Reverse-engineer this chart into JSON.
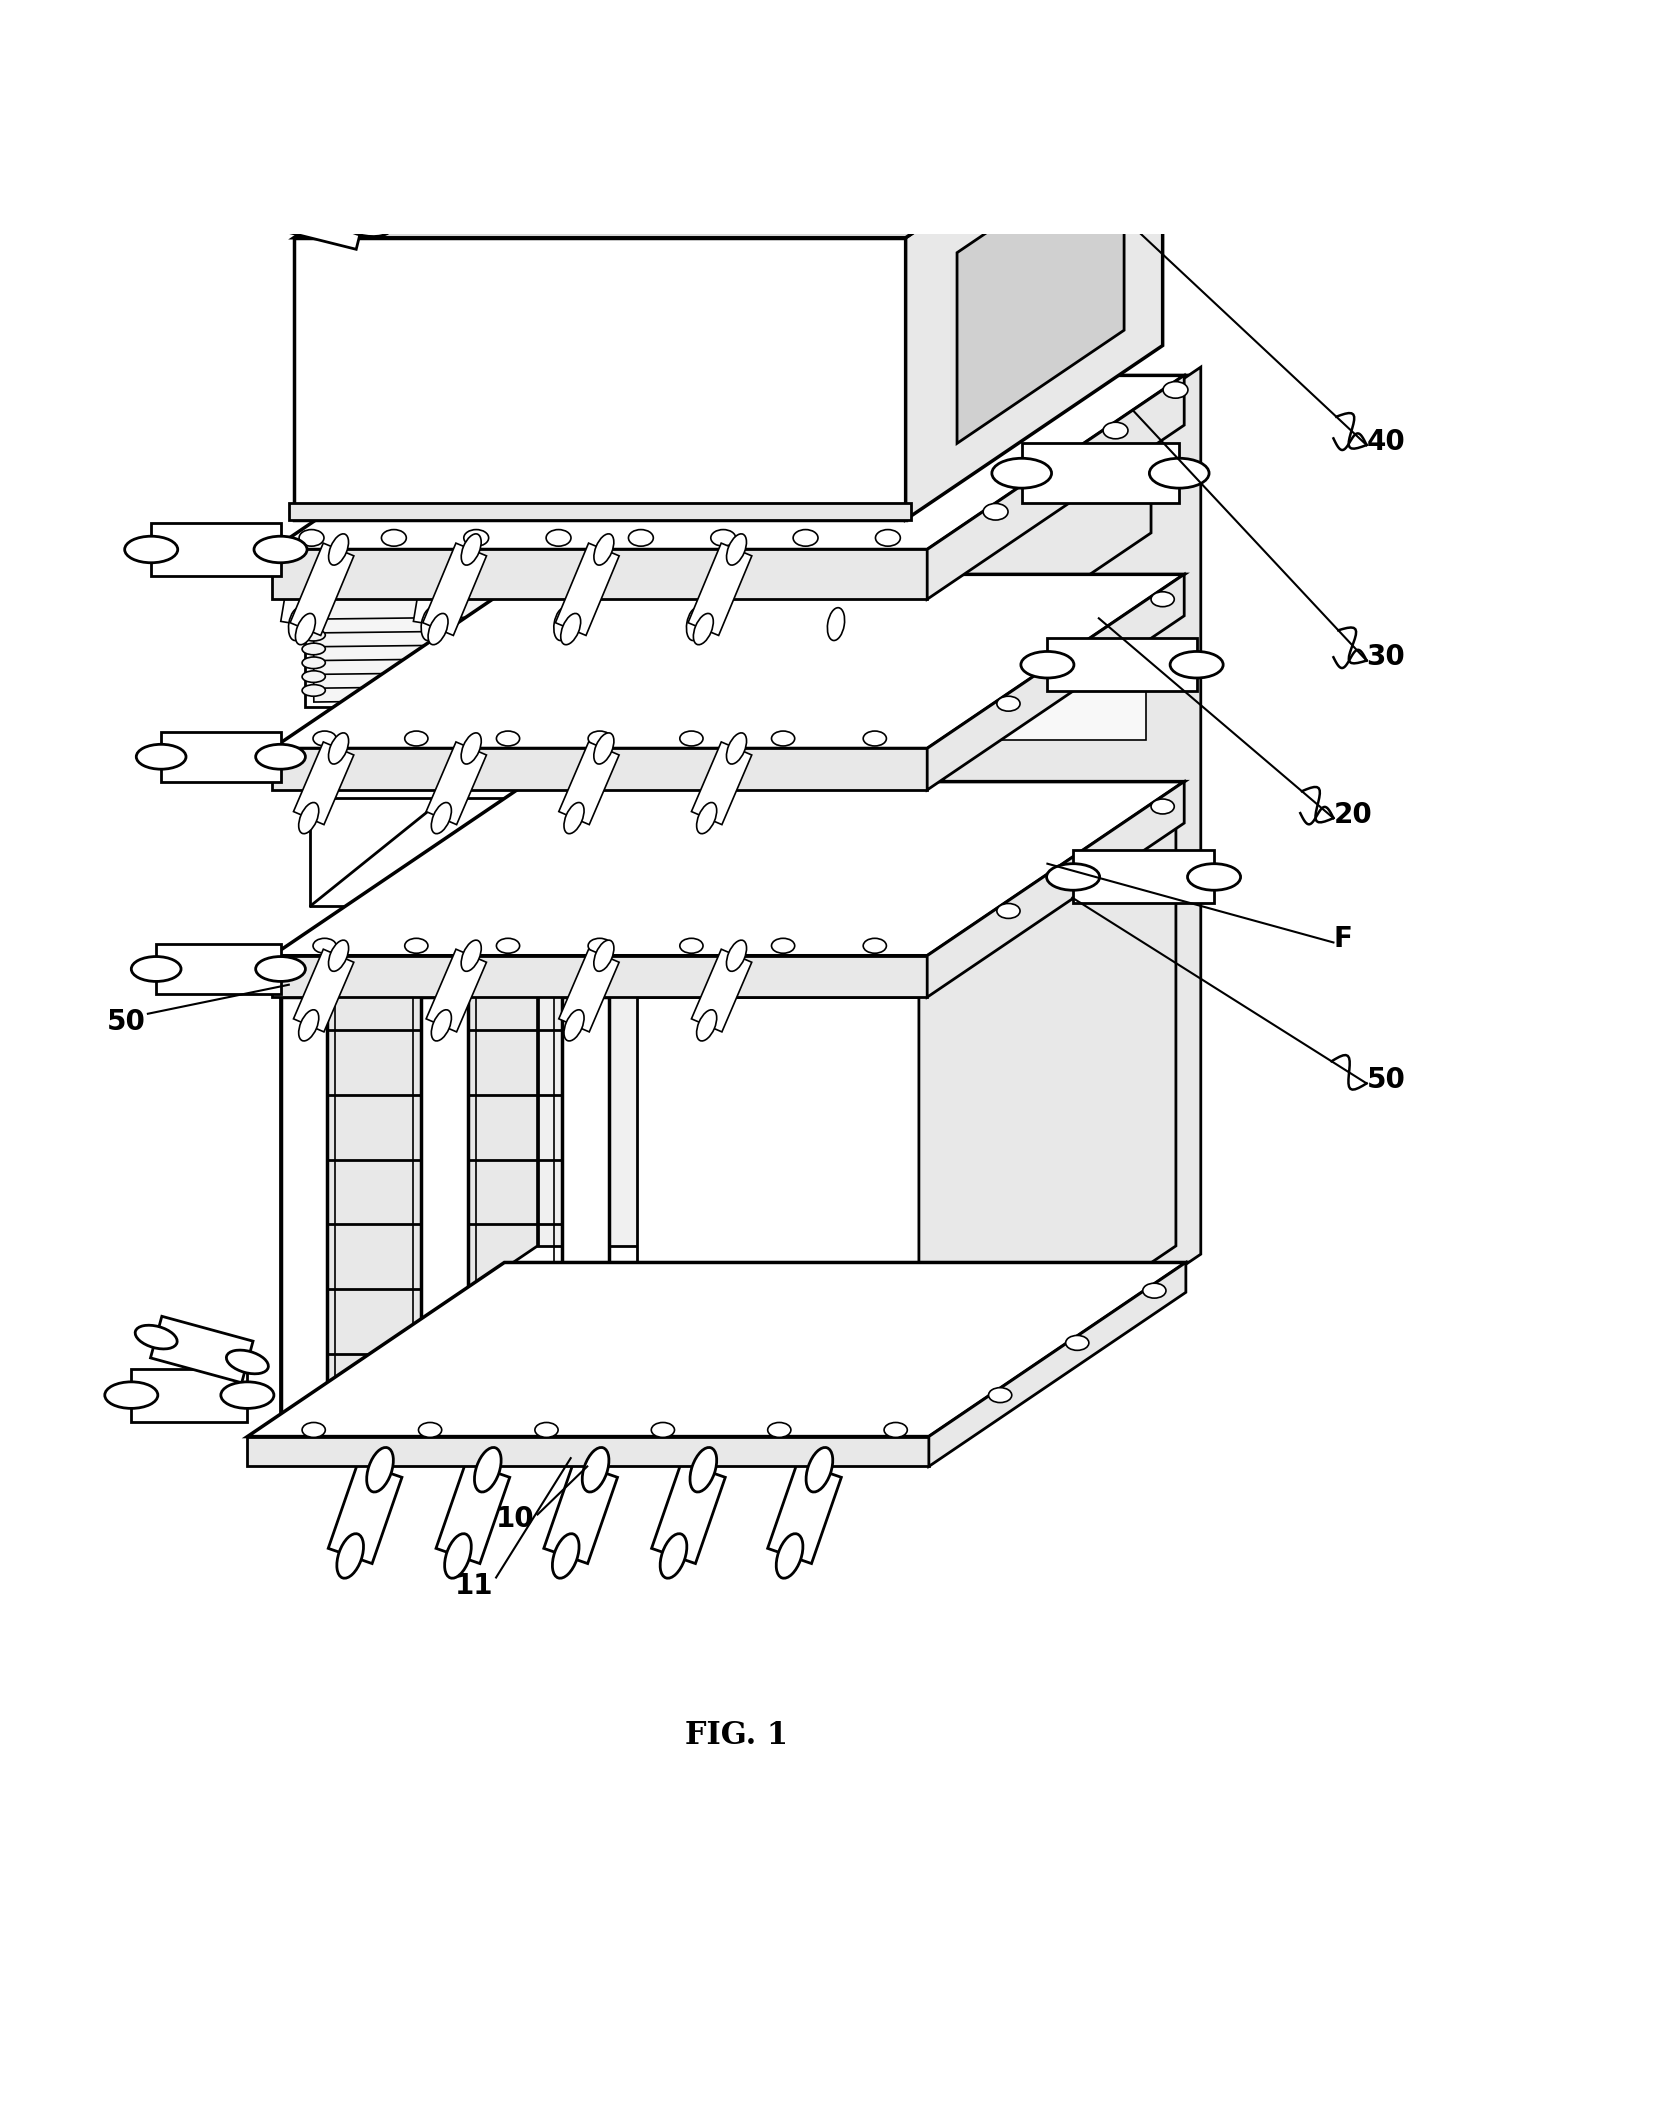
{
  "background_color": "#ffffff",
  "line_color": "#000000",
  "lw_main": 2.0,
  "lw_thick": 2.5,
  "lw_thin": 1.2,
  "fig_width": 16.72,
  "fig_height": 21.27,
  "title": "FIG. 1",
  "title_fontsize": 22,
  "label_fontsize": 20,
  "label_bold": true
}
